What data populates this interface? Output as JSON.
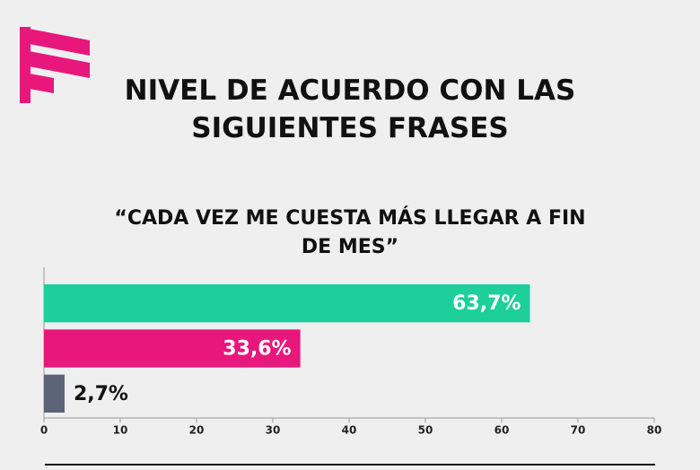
{
  "chart_data": {
    "type": "bar",
    "orientation": "horizontal",
    "title": "NIVEL DE ACUERDO CON LAS SIGUIENTES FRASES",
    "subtitle": "“CADA VEZ ME CUESTA MÁS LLEGAR A FIN DE MES”",
    "categories": [
      null,
      null,
      null
    ],
    "values": [
      63.7,
      33.6,
      2.7
    ],
    "value_labels": [
      "63,7%",
      "33,6%",
      "2,7%"
    ],
    "colors": [
      "#1ccf9b",
      "#e8177c",
      "#5b6378"
    ],
    "xlim": [
      0,
      80
    ],
    "xticks": [
      0,
      10,
      20,
      30,
      40,
      50,
      60,
      70,
      80
    ]
  }
}
